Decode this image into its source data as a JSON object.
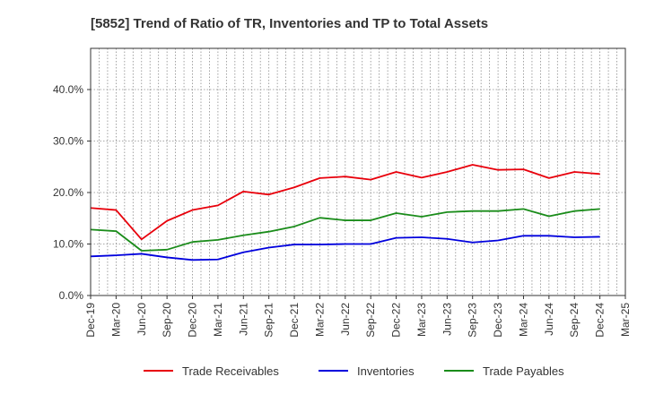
{
  "chart_data": {
    "type": "line",
    "title": "[5852]  Trend of Ratio of TR, Inventories and TP to Total Assets",
    "xlabel": "",
    "ylabel": "",
    "x": [
      "Dec-19",
      "Mar-20",
      "Jun-20",
      "Sep-20",
      "Dec-20",
      "Mar-21",
      "Jun-21",
      "Sep-21",
      "Dec-21",
      "Mar-22",
      "Jun-22",
      "Sep-22",
      "Dec-22",
      "Mar-23",
      "Jun-23",
      "Sep-23",
      "Dec-23",
      "Mar-24",
      "Jun-24",
      "Sep-24",
      "Dec-24",
      "Mar-25"
    ],
    "ylim": [
      0,
      48
    ],
    "yticks": [
      0,
      10,
      20,
      30,
      40
    ],
    "ytick_labels": [
      "0.0%",
      "10.0%",
      "20.0%",
      "30.0%",
      "40.0%"
    ],
    "grid": true,
    "legend_position": "bottom",
    "series": [
      {
        "name": "Trade Receivables",
        "color": "#e8000b",
        "values": [
          17.0,
          16.6,
          10.9,
          14.5,
          16.6,
          17.5,
          20.2,
          19.6,
          21.0,
          22.8,
          23.1,
          22.5,
          24.0,
          22.9,
          24.0,
          25.4,
          24.4,
          24.5,
          22.8,
          24.0,
          23.6,
          null
        ]
      },
      {
        "name": "Inventories",
        "color": "#0000dd",
        "values": [
          7.6,
          7.8,
          8.1,
          7.4,
          6.9,
          7.0,
          8.4,
          9.3,
          9.9,
          9.9,
          10.0,
          10.0,
          11.2,
          11.3,
          11.0,
          10.3,
          10.7,
          11.6,
          11.6,
          11.3,
          11.4,
          null
        ]
      },
      {
        "name": "Trade Payables",
        "color": "#1a8c1a",
        "values": [
          12.8,
          12.5,
          8.7,
          8.9,
          10.4,
          10.8,
          11.7,
          12.4,
          13.4,
          15.1,
          14.6,
          14.6,
          16.0,
          15.3,
          16.2,
          16.4,
          16.4,
          16.8,
          15.4,
          16.4,
          16.8,
          null
        ]
      }
    ]
  }
}
